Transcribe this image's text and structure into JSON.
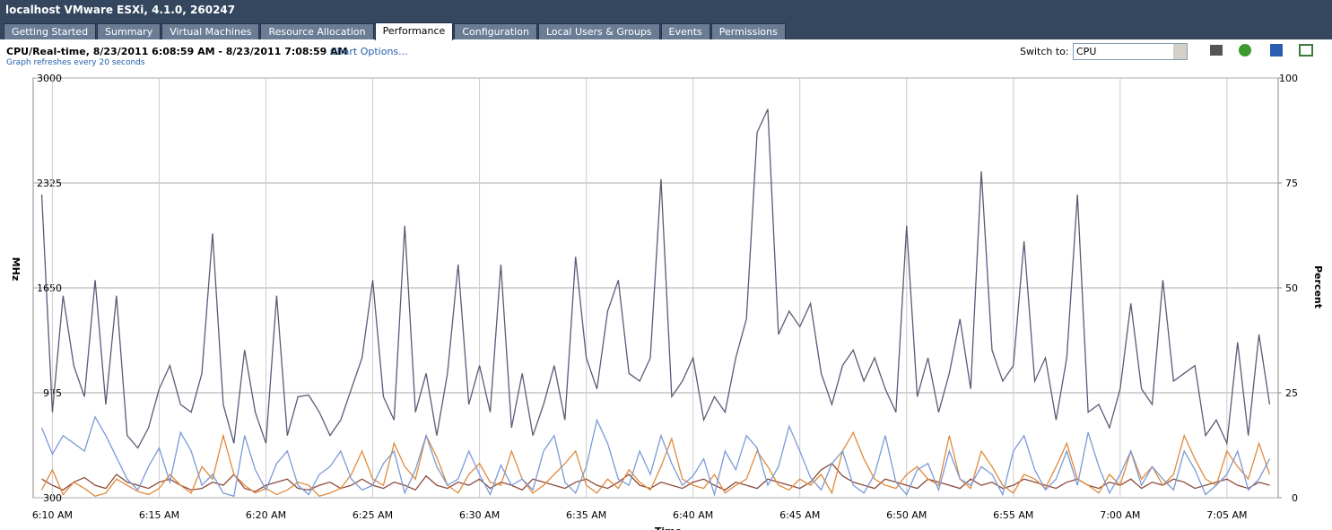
{
  "window": {
    "title": "localhost VMware ESXi, 4.1.0, 260247",
    "tabs": [
      "Getting Started",
      "Summary",
      "Virtual Machines",
      "Resource Allocation",
      "Performance",
      "Configuration",
      "Local Users & Groups",
      "Events",
      "Permissions"
    ],
    "active_tab": 4,
    "switch_label": "Switch to:",
    "switch_value": "CPU",
    "chart_options": "Chart Options..."
  },
  "chart_data": {
    "type": "line",
    "title": "CPU/Real-time, 8/23/2011 6:08:59 AM - 8/23/2011 7:08:59 AM",
    "subtitle": "Graph refreshes every 20 seconds",
    "y_label": "MHz",
    "y2_label": "Percent",
    "x_label": "Time",
    "x": [
      9.5,
      10,
      10.5,
      11,
      11.5,
      12,
      12.5,
      13,
      13.5,
      14,
      14.5,
      15,
      15.5,
      16,
      16.5,
      17,
      17.5,
      18,
      18.5,
      19,
      19.5,
      20,
      20.5,
      21,
      21.5,
      22,
      22.5,
      23,
      23.5,
      24,
      24.5,
      25,
      25.5,
      26,
      26.5,
      27,
      27.5,
      28,
      28.5,
      29,
      29.5,
      30,
      30.5,
      31,
      31.5,
      32,
      32.5,
      33,
      33.5,
      34,
      34.5,
      35,
      35.5,
      36,
      36.5,
      37,
      37.5,
      38,
      38.5,
      39,
      39.5,
      40,
      40.5,
      41,
      41.5,
      42,
      42.5,
      43,
      43.5,
      44,
      44.5,
      45,
      45.5,
      46,
      46.5,
      47,
      47.5,
      48,
      48.5,
      49,
      49.5,
      50,
      50.5,
      51,
      51.5,
      52,
      52.5,
      53,
      53.5,
      54,
      54.5,
      55,
      55.5,
      56,
      56.5,
      57,
      57.5,
      58,
      58.5,
      59,
      59.5,
      60,
      60.5,
      61,
      61.5,
      62,
      62.5,
      63,
      63.5,
      64,
      64.5,
      65,
      65.5,
      66,
      66.5,
      67
    ],
    "xlim": [
      9.1,
      67.4
    ],
    "xticks": [
      {
        "value": 10,
        "label": "6:10 AM"
      },
      {
        "value": 15,
        "label": "6:15 AM"
      },
      {
        "value": 20,
        "label": "6:20 AM"
      },
      {
        "value": 25,
        "label": "6:25 AM"
      },
      {
        "value": 30,
        "label": "6:30 AM"
      },
      {
        "value": 35,
        "label": "6:35 AM"
      },
      {
        "value": 40,
        "label": "6:40 AM"
      },
      {
        "value": 45,
        "label": "6:45 AM"
      },
      {
        "value": 50,
        "label": "6:50 AM"
      },
      {
        "value": 55,
        "label": "6:55 AM"
      },
      {
        "value": 60,
        "label": "7:00 AM"
      },
      {
        "value": 65,
        "label": "7:05 AM"
      }
    ],
    "ylim": [
      300,
      3000
    ],
    "yticks": [
      300,
      975,
      1650,
      2325,
      3000
    ],
    "y2lim": [
      0,
      100
    ],
    "y2ticks": [
      0,
      25,
      50,
      75,
      100
    ],
    "grid": true,
    "series": [
      {
        "color": "#5a5a78",
        "values": [
          2250,
          850,
          1600,
          1150,
          950,
          1700,
          900,
          1600,
          700,
          620,
          750,
          1000,
          1150,
          900,
          850,
          1100,
          2000,
          900,
          650,
          1250,
          850,
          650,
          1600,
          700,
          950,
          960,
          850,
          700,
          800,
          1000,
          1200,
          1700,
          950,
          800,
          2050,
          850,
          1100,
          700,
          1100,
          1800,
          900,
          1150,
          850,
          1800,
          750,
          1100,
          700,
          900,
          1150,
          800,
          1850,
          1200,
          1000,
          1500,
          1700,
          1100,
          1050,
          1200,
          2350,
          950,
          1050,
          1200,
          800,
          950,
          850,
          1200,
          1450,
          2650,
          2800,
          1350,
          1500,
          1400,
          1550,
          1100,
          900,
          1150,
          1250,
          1050,
          1200,
          1000,
          850,
          2050,
          950,
          1200,
          850,
          1100,
          1450,
          1000,
          2400,
          1250,
          1050,
          1150,
          1950,
          1050,
          1200,
          800,
          1200,
          2250,
          850,
          900,
          750,
          1000,
          1550,
          1000,
          900,
          1700,
          1050,
          1100,
          1150,
          700,
          800,
          650,
          1300,
          700,
          1350,
          900
        ]
      },
      {
        "color": "#7a9ad8",
        "values": [
          750,
          580,
          700,
          650,
          600,
          820,
          700,
          560,
          420,
          350,
          500,
          620,
          400,
          720,
          600,
          380,
          450,
          330,
          310,
          700,
          480,
          350,
          520,
          600,
          380,
          320,
          450,
          500,
          600,
          420,
          350,
          380,
          520,
          600,
          330,
          480,
          700,
          500,
          380,
          420,
          600,
          450,
          320,
          510,
          380,
          420,
          350,
          600,
          700,
          400,
          330,
          500,
          800,
          650,
          420,
          380,
          600,
          450,
          700,
          520,
          380,
          440,
          550,
          320,
          600,
          480,
          700,
          620,
          380,
          500,
          760,
          600,
          430,
          350,
          520,
          600,
          380,
          330,
          450,
          700,
          400,
          320,
          480,
          520,
          350,
          600,
          420,
          380,
          500,
          450,
          320,
          600,
          700,
          480,
          350,
          420,
          600,
          380,
          720,
          500,
          330,
          450,
          600,
          380,
          500,
          420,
          350,
          600,
          480,
          320,
          380,
          450,
          600,
          350,
          420,
          550
        ]
      },
      {
        "color": "#e08a3c",
        "values": [
          350,
          480,
          320,
          400,
          360,
          310,
          330,
          420,
          380,
          340,
          320,
          360,
          450,
          380,
          330,
          500,
          420,
          700,
          450,
          380,
          330,
          360,
          320,
          350,
          400,
          380,
          310,
          330,
          360,
          450,
          600,
          420,
          380,
          650,
          500,
          420,
          700,
          560,
          380,
          330,
          450,
          520,
          400,
          380,
          600,
          420,
          330,
          380,
          450,
          520,
          600,
          380,
          330,
          420,
          360,
          480,
          400,
          350,
          500,
          680,
          420,
          380,
          360,
          450,
          330,
          380,
          420,
          600,
          500,
          380,
          350,
          420,
          380,
          450,
          330,
          600,
          720,
          550,
          420,
          380,
          360,
          450,
          500,
          420,
          380,
          700,
          420,
          360,
          600,
          500,
          380,
          330,
          450,
          420,
          360,
          500,
          650,
          420,
          380,
          330,
          450,
          380,
          600,
          420,
          500,
          380,
          450,
          700,
          550,
          420,
          380,
          600,
          500,
          420,
          650,
          450
        ]
      },
      {
        "color": "#8b4a3a",
        "values": [
          420,
          380,
          350,
          400,
          430,
          380,
          360,
          450,
          400,
          380,
          360,
          400,
          420,
          380,
          350,
          360,
          400,
          380,
          450,
          360,
          340,
          380,
          400,
          420,
          360,
          350,
          380,
          400,
          360,
          380,
          420,
          380,
          360,
          400,
          380,
          350,
          440,
          380,
          360,
          400,
          380,
          420,
          360,
          400,
          380,
          350,
          420,
          400,
          380,
          360,
          400,
          420,
          380,
          360,
          400,
          450,
          380,
          360,
          400,
          380,
          360,
          400,
          420,
          380,
          350,
          400,
          380,
          360,
          420,
          400,
          380,
          360,
          400,
          480,
          520,
          440,
          400,
          380,
          360,
          420,
          400,
          380,
          360,
          420,
          400,
          380,
          360,
          420,
          380,
          400,
          360,
          380,
          420,
          400,
          380,
          360,
          400,
          420,
          380,
          360,
          400,
          380,
          420,
          360,
          400,
          380,
          420,
          400,
          360,
          380,
          400,
          420,
          380,
          360,
          400,
          380
        ]
      }
    ]
  }
}
